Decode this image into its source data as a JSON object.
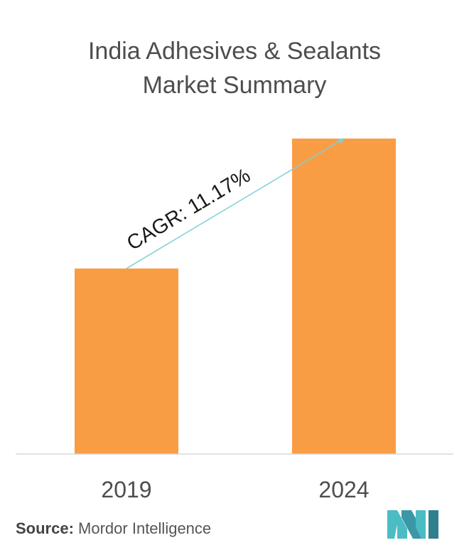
{
  "chart_data": {
    "type": "bar",
    "title_line1": "India Adhesives & Sealants",
    "title_line2": "Market Summary",
    "categories": [
      "2019",
      "2024"
    ],
    "values": [
      1.0,
      1.7
    ],
    "annotation": "CAGR: 11.17%",
    "bar_color": "#f99d44",
    "axis_color": "#d9d9d9",
    "arrow_color": "#7fd0d6",
    "grid": false
  },
  "source": {
    "label": "Source:",
    "text": "Mordor Intelligence"
  },
  "logo": {
    "icon": "mordor-intelligence-logo",
    "color": "#4bbcc4"
  }
}
